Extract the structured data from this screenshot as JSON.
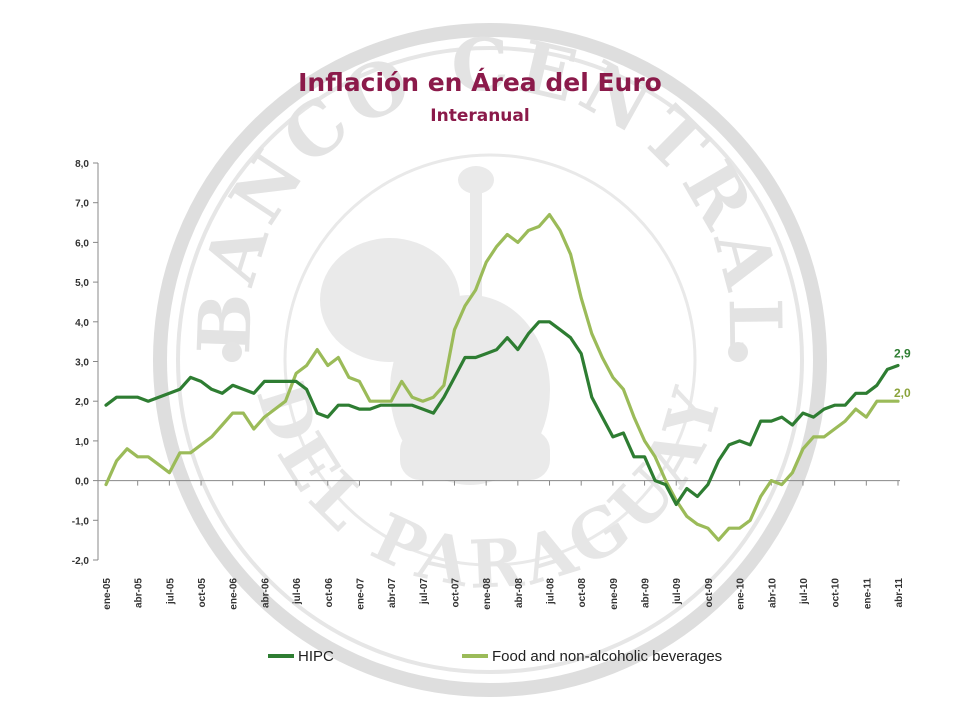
{
  "title": "Inflación en Área del Euro",
  "subtitle": "Interanual",
  "watermark": {
    "text_top": "BANCO CENTRAL",
    "text_bottom": "DEL PARAGUAY"
  },
  "colors": {
    "hipc": "#2e7d32",
    "food": "#9bbb59",
    "title": "#8b1a4a",
    "label_hipc": "#2e7d32",
    "label_food": "#8aa33a"
  },
  "legend": [
    {
      "label": "HIPC",
      "color": "#2e7d32"
    },
    {
      "label": "Food and non-alcoholic beverages",
      "color": "#9bbb59"
    }
  ],
  "chart_data": {
    "type": "line",
    "title": "Inflación en Área del Euro",
    "subtitle": "Interanual",
    "ylim": [
      -2.0,
      8.0
    ],
    "yticks": [
      "8,0",
      "7,0",
      "6,0",
      "5,0",
      "4,0",
      "3,0",
      "2,0",
      "1,0",
      "0,0",
      "-1,0",
      "-2,0"
    ],
    "x_tick_labels": [
      "ene-05",
      "abr-05",
      "jul-05",
      "oct-05",
      "ene-06",
      "abr-06",
      "jul-06",
      "oct-06",
      "ene-07",
      "abr-07",
      "jul-07",
      "oct-07",
      "ene-08",
      "abr-08",
      "jul-08",
      "oct-08",
      "ene-09",
      "abr-09",
      "jul-09",
      "oct-09",
      "ene-10",
      "abr-10",
      "jul-10",
      "oct-10",
      "ene-11",
      "abr-11"
    ],
    "grid": false,
    "legend_position": "bottom",
    "series": [
      {
        "name": "HIPC",
        "end_label": "2,9",
        "values": [
          1.9,
          2.1,
          2.1,
          2.1,
          2.0,
          2.1,
          2.2,
          2.3,
          2.6,
          2.5,
          2.3,
          2.2,
          2.4,
          2.3,
          2.2,
          2.5,
          2.5,
          2.5,
          2.5,
          2.3,
          1.7,
          1.6,
          1.9,
          1.9,
          1.8,
          1.8,
          1.9,
          1.9,
          1.9,
          1.9,
          1.8,
          1.7,
          2.1,
          2.6,
          3.1,
          3.1,
          3.2,
          3.3,
          3.6,
          3.3,
          3.7,
          4.0,
          4.0,
          3.8,
          3.6,
          3.2,
          2.1,
          1.6,
          1.1,
          1.2,
          0.6,
          0.6,
          0.0,
          -0.1,
          -0.6,
          -0.2,
          -0.4,
          -0.1,
          0.5,
          0.9,
          1.0,
          0.9,
          1.5,
          1.5,
          1.6,
          1.4,
          1.7,
          1.6,
          1.8,
          1.9,
          1.9,
          2.2,
          2.2,
          2.4,
          2.8,
          2.9
        ]
      },
      {
        "name": "Food and non-alcoholic beverages",
        "end_label": "2,0",
        "values": [
          -0.1,
          0.5,
          0.8,
          0.6,
          0.6,
          0.4,
          0.2,
          0.7,
          0.7,
          0.9,
          1.1,
          1.4,
          1.7,
          1.7,
          1.3,
          1.6,
          1.8,
          2.0,
          2.7,
          2.9,
          3.3,
          2.9,
          3.1,
          2.6,
          2.5,
          2.0,
          2.0,
          2.0,
          2.5,
          2.1,
          2.0,
          2.1,
          2.4,
          3.8,
          4.4,
          4.8,
          5.5,
          5.9,
          6.2,
          6.0,
          6.3,
          6.4,
          6.7,
          6.3,
          5.7,
          4.6,
          3.7,
          3.1,
          2.6,
          2.3,
          1.6,
          1.0,
          0.6,
          0.0,
          -0.5,
          -0.9,
          -1.1,
          -1.2,
          -1.5,
          -1.2,
          -1.2,
          -1.0,
          -0.4,
          0.0,
          -0.1,
          0.2,
          0.8,
          1.1,
          1.1,
          1.3,
          1.5,
          1.8,
          1.6,
          2.0,
          2.0,
          2.0
        ]
      }
    ]
  }
}
